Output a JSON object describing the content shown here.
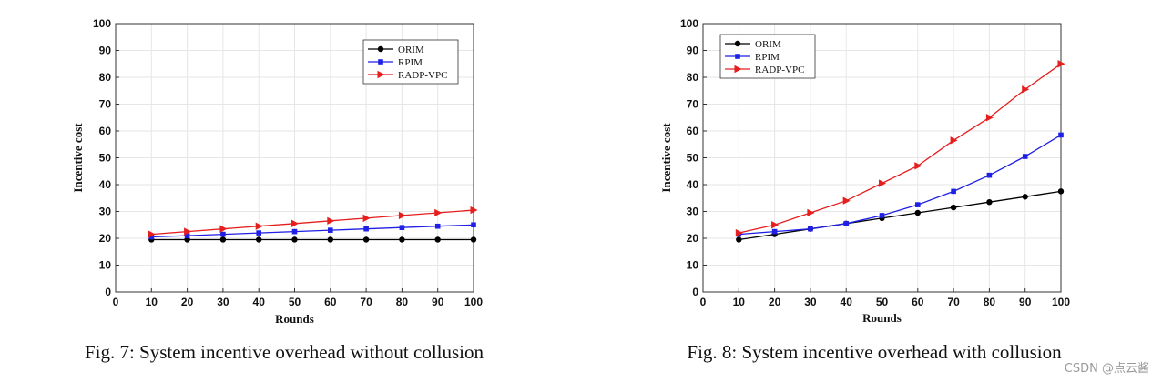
{
  "chart_data": [
    {
      "type": "line",
      "caption": "Fig. 7: System incentive overhead without collusion",
      "xlabel": "Rounds",
      "ylabel": "Incentive cost",
      "xlim": [
        0,
        100
      ],
      "ylim": [
        0,
        100
      ],
      "xticks": [
        0,
        10,
        20,
        30,
        40,
        50,
        60,
        70,
        80,
        90,
        100
      ],
      "yticks": [
        0,
        10,
        20,
        30,
        40,
        50,
        60,
        70,
        80,
        90,
        100
      ],
      "grid": true,
      "legend_position": "top-right",
      "x": [
        10,
        20,
        30,
        40,
        50,
        60,
        70,
        80,
        90,
        100
      ],
      "series": [
        {
          "name": "ORIM",
          "color": "#000000",
          "marker": "circle",
          "values": [
            19.5,
            19.5,
            19.5,
            19.5,
            19.5,
            19.5,
            19.5,
            19.5,
            19.5,
            19.5
          ]
        },
        {
          "name": "RPIM",
          "color": "#1f1fe6",
          "marker": "square",
          "values": [
            20.5,
            21,
            21.5,
            22,
            22.5,
            23,
            23.5,
            24,
            24.5,
            25
          ]
        },
        {
          "name": "RADP-VPC",
          "color": "#e61e1e",
          "marker": "triangle-right",
          "values": [
            21.5,
            22.5,
            23.5,
            24.5,
            25.5,
            26.5,
            27.5,
            28.5,
            29.5,
            30.5
          ]
        }
      ]
    },
    {
      "type": "line",
      "caption": "Fig. 8: System incentive overhead with collusion",
      "xlabel": "Rounds",
      "ylabel": "Incentive cost",
      "xlim": [
        0,
        100
      ],
      "ylim": [
        0,
        100
      ],
      "xticks": [
        0,
        10,
        20,
        30,
        40,
        50,
        60,
        70,
        80,
        90,
        100
      ],
      "yticks": [
        0,
        10,
        20,
        30,
        40,
        50,
        60,
        70,
        80,
        90,
        100
      ],
      "grid": true,
      "legend_position": "top-left",
      "x": [
        10,
        20,
        30,
        40,
        50,
        60,
        70,
        80,
        90,
        100
      ],
      "series": [
        {
          "name": "ORIM",
          "color": "#000000",
          "marker": "circle",
          "values": [
            19.5,
            21.5,
            23.5,
            25.5,
            27.5,
            29.5,
            31.5,
            33.5,
            35.5,
            37.5
          ]
        },
        {
          "name": "RPIM",
          "color": "#1f1fe6",
          "marker": "square",
          "values": [
            21.5,
            22.5,
            23.5,
            25.5,
            28.5,
            32.5,
            37.5,
            43.5,
            50.5,
            58.5
          ]
        },
        {
          "name": "RADP-VPC",
          "color": "#e61e1e",
          "marker": "triangle-right",
          "values": [
            22,
            25,
            29.5,
            34,
            40.5,
            47,
            56.5,
            65,
            75.5,
            85
          ]
        }
      ]
    }
  ],
  "watermark": "CSDN @点云酱"
}
